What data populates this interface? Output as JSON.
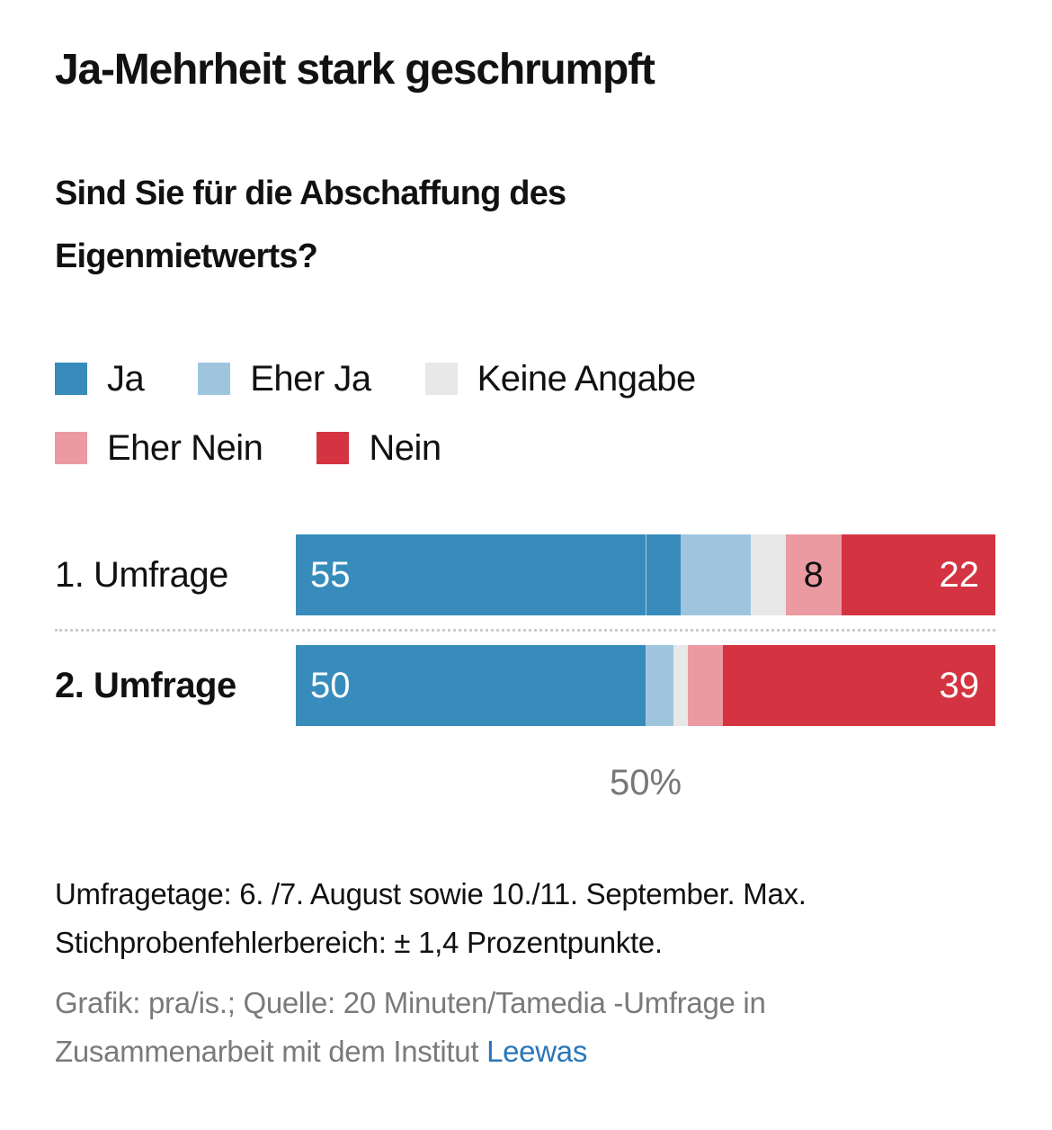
{
  "chart_data": {
    "type": "bar",
    "orientation": "horizontal-stacked",
    "title": "Ja-Mehrheit stark geschrumpft",
    "subtitle": "Sind Sie für die Abschaffung des Eigenmietwerts?",
    "xlim": [
      0,
      100
    ],
    "reference_line": {
      "value": 50,
      "label": "50%"
    },
    "legend_placement": "top-left",
    "series": [
      {
        "name": "Ja",
        "color": "#378cbc",
        "values": [
          55,
          50
        ]
      },
      {
        "name": "Eher Ja",
        "color": "#9fc5de",
        "values": [
          10,
          4
        ]
      },
      {
        "name": "Keine Angabe",
        "color": "#e8e8e8",
        "values": [
          5,
          2
        ]
      },
      {
        "name": "Eher Nein",
        "color": "#eb9aa1",
        "values": [
          8,
          5
        ]
      },
      {
        "name": "Nein",
        "color": "#d43441",
        "values": [
          22,
          39
        ]
      }
    ],
    "categories": [
      "1. Umfrage",
      "2. Umfrage"
    ],
    "rows": [
      {
        "label": "1. Umfrage",
        "bold": false,
        "segments": [
          {
            "series": "Ja",
            "value": 55,
            "label": "55",
            "label_align": "left",
            "label_color": "#ffffff"
          },
          {
            "series": "Eher Ja",
            "value": 10,
            "label": ""
          },
          {
            "series": "Keine Angabe",
            "value": 5,
            "label": ""
          },
          {
            "series": "Eher Nein",
            "value": 8,
            "label": "8",
            "label_align": "center",
            "label_color": "#111111"
          },
          {
            "series": "Nein",
            "value": 22,
            "label": "22",
            "label_align": "right",
            "label_color": "#ffffff"
          }
        ]
      },
      {
        "label": "2. Umfrage",
        "bold": true,
        "segments": [
          {
            "series": "Ja",
            "value": 50,
            "label": "50",
            "label_align": "left",
            "label_color": "#ffffff"
          },
          {
            "series": "Eher Ja",
            "value": 4,
            "label": ""
          },
          {
            "series": "Keine Angabe",
            "value": 2,
            "label": ""
          },
          {
            "series": "Eher Nein",
            "value": 5,
            "label": ""
          },
          {
            "series": "Nein",
            "value": 39,
            "label": "39",
            "label_align": "right",
            "label_color": "#ffffff"
          }
        ]
      }
    ]
  },
  "header": {
    "title": "Ja-Mehrheit stark geschrumpft",
    "subtitle": "Sind Sie für die Abschaffung des Eigenmietwerts?"
  },
  "legend": [
    {
      "label": "Ja",
      "color": "#378cbc"
    },
    {
      "label": "Eher Ja",
      "color": "#9fc5de"
    },
    {
      "label": "Keine Angabe",
      "color": "#e8e8e8"
    },
    {
      "label": "Eher Nein",
      "color": "#eb9aa1"
    },
    {
      "label": "Nein",
      "color": "#d43441"
    }
  ],
  "footer": {
    "note": "Umfragetage: 6. /7. August sowie 10./11. September. Max. Stichprobenfehlerbereich: ± 1,4 Prozentpunkte.",
    "source_prefix": "Grafik: pra/is.; Quelle: 20 Minuten/Tamedia -Umfrage in Zusammenarbeit mit dem Institut ",
    "source_link": "Leewas",
    "link_color": "#2a76b8"
  }
}
